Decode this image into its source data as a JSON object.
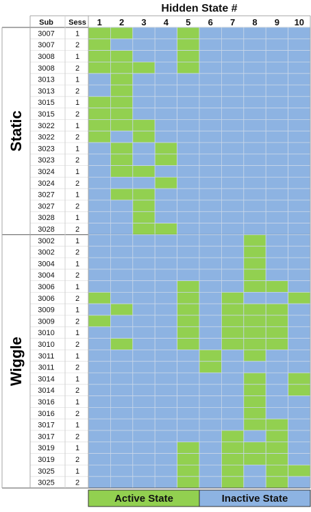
{
  "chart_data": {
    "type": "heatmap",
    "title": "Hidden State #",
    "column_headers": {
      "sub": "Sub",
      "sess": "Sess"
    },
    "states": [
      "1",
      "2",
      "3",
      "4",
      "5",
      "6",
      "7",
      "8",
      "9",
      "10"
    ],
    "legend": {
      "active_label": "Active State",
      "inactive_label": "Inactive State",
      "active_color": "#92d050",
      "inactive_color": "#8db3e2",
      "position": "bottom"
    },
    "groups": [
      {
        "label": "Static",
        "rows": [
          {
            "sub": "3007",
            "sess": "1",
            "active": [
              1,
              2,
              5
            ]
          },
          {
            "sub": "3007",
            "sess": "2",
            "active": [
              1,
              5
            ]
          },
          {
            "sub": "3008",
            "sess": "1",
            "active": [
              1,
              2,
              5
            ]
          },
          {
            "sub": "3008",
            "sess": "2",
            "active": [
              1,
              2,
              3,
              5
            ]
          },
          {
            "sub": "3013",
            "sess": "1",
            "active": [
              2
            ]
          },
          {
            "sub": "3013",
            "sess": "2",
            "active": [
              2
            ]
          },
          {
            "sub": "3015",
            "sess": "1",
            "active": [
              1,
              2
            ]
          },
          {
            "sub": "3015",
            "sess": "2",
            "active": [
              1,
              2
            ]
          },
          {
            "sub": "3022",
            "sess": "1",
            "active": [
              1,
              2,
              3
            ]
          },
          {
            "sub": "3022",
            "sess": "2",
            "active": [
              1,
              3
            ]
          },
          {
            "sub": "3023",
            "sess": "1",
            "active": [
              2,
              4
            ]
          },
          {
            "sub": "3023",
            "sess": "2",
            "active": [
              2,
              4
            ]
          },
          {
            "sub": "3024",
            "sess": "1",
            "active": [
              2,
              3
            ]
          },
          {
            "sub": "3024",
            "sess": "2",
            "active": [
              4
            ]
          },
          {
            "sub": "3027",
            "sess": "1",
            "active": [
              2,
              3
            ]
          },
          {
            "sub": "3027",
            "sess": "2",
            "active": [
              3
            ]
          },
          {
            "sub": "3028",
            "sess": "1",
            "active": [
              3
            ]
          },
          {
            "sub": "3028",
            "sess": "2",
            "active": [
              3,
              4
            ]
          }
        ]
      },
      {
        "label": "Wiggle",
        "rows": [
          {
            "sub": "3002",
            "sess": "1",
            "active": [
              8
            ]
          },
          {
            "sub": "3002",
            "sess": "2",
            "active": [
              8
            ]
          },
          {
            "sub": "3004",
            "sess": "1",
            "active": [
              8
            ]
          },
          {
            "sub": "3004",
            "sess": "2",
            "active": [
              8
            ]
          },
          {
            "sub": "3006",
            "sess": "1",
            "active": [
              5,
              8,
              9
            ]
          },
          {
            "sub": "3006",
            "sess": "2",
            "active": [
              1,
              5,
              7,
              10
            ]
          },
          {
            "sub": "3009",
            "sess": "1",
            "active": [
              2,
              5,
              7,
              8,
              9
            ]
          },
          {
            "sub": "3009",
            "sess": "2",
            "active": [
              1,
              5,
              7,
              8,
              9
            ]
          },
          {
            "sub": "3010",
            "sess": "1",
            "active": [
              5,
              7,
              8,
              9
            ]
          },
          {
            "sub": "3010",
            "sess": "2",
            "active": [
              2,
              5,
              7,
              8,
              9
            ]
          },
          {
            "sub": "3011",
            "sess": "1",
            "active": [
              6,
              8
            ]
          },
          {
            "sub": "3011",
            "sess": "2",
            "active": [
              6
            ]
          },
          {
            "sub": "3014",
            "sess": "1",
            "active": [
              8,
              10
            ]
          },
          {
            "sub": "3014",
            "sess": "2",
            "active": [
              8,
              10
            ]
          },
          {
            "sub": "3016",
            "sess": "1",
            "active": [
              8
            ]
          },
          {
            "sub": "3016",
            "sess": "2",
            "active": [
              8
            ]
          },
          {
            "sub": "3017",
            "sess": "1",
            "active": [
              8,
              9
            ]
          },
          {
            "sub": "3017",
            "sess": "2",
            "active": [
              7,
              9
            ]
          },
          {
            "sub": "3019",
            "sess": "1",
            "active": [
              5,
              7,
              8,
              9
            ]
          },
          {
            "sub": "3019",
            "sess": "2",
            "active": [
              5,
              7,
              8,
              9
            ]
          },
          {
            "sub": "3025",
            "sess": "1",
            "active": [
              5,
              7,
              9,
              10
            ]
          },
          {
            "sub": "3025",
            "sess": "2",
            "active": [
              5,
              7,
              9
            ]
          }
        ]
      }
    ]
  }
}
